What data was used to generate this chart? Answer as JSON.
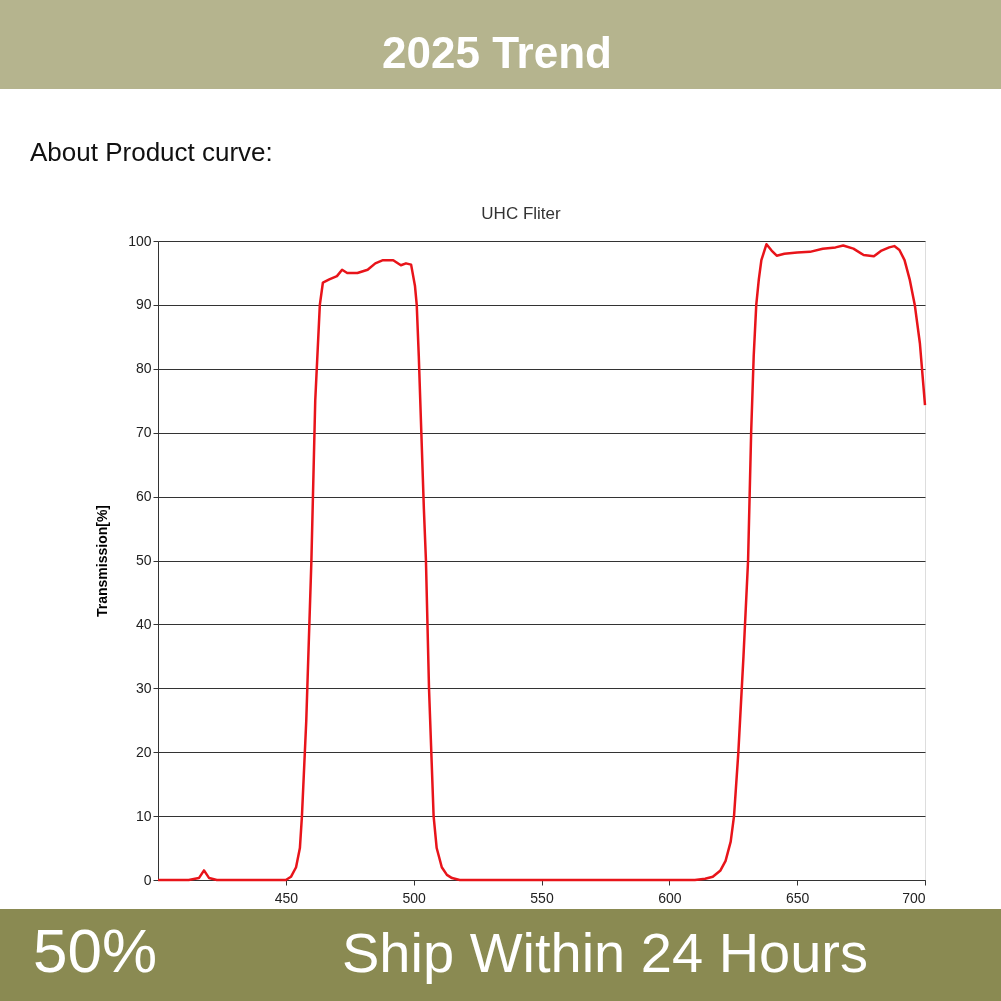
{
  "chart_data": {
    "type": "line",
    "title": "UHC Fliter",
    "ylabel": "Transmission[%]",
    "annotations": [
      "2025 Trend",
      "About Product curve:",
      "50%",
      "Ship Within 24 Hours"
    ],
    "xlim": [
      400,
      700
    ],
    "xticks": [
      450,
      500,
      550,
      600,
      650,
      700
    ],
    "ylim": [
      0,
      100
    ],
    "yticks": [
      0,
      10,
      20,
      30,
      40,
      50,
      60,
      70,
      80,
      90,
      100
    ],
    "grid": "y",
    "legend": false,
    "marker": "none",
    "line_style": "solid",
    "series": [
      {
        "color": "#e8141a",
        "x": [
          400,
          412,
          416,
          418,
          420,
          423,
          440,
          450,
          452,
          454,
          455.5,
          456.3,
          458,
          460,
          461.5,
          463.3,
          464.5,
          467,
          470,
          472,
          474,
          478,
          482,
          485,
          488,
          492,
          495,
          497,
          499,
          500.5,
          501.2,
          502,
          503,
          504,
          504.8,
          506,
          507.8,
          509,
          511,
          513,
          515,
          518,
          540,
          580,
          600,
          610,
          614,
          617,
          620,
          622,
          624,
          625.3,
          627,
          629,
          630.8,
          632,
          633,
          634,
          635,
          636,
          638,
          640,
          642,
          645,
          650,
          655,
          660,
          665,
          668,
          672,
          676,
          680,
          683,
          686,
          688,
          690,
          692,
          694,
          696,
          698,
          700
        ],
        "values": [
          0,
          0,
          0.3,
          1.5,
          0.3,
          0,
          0,
          0,
          0.5,
          2,
          5,
          10,
          25,
          50,
          75,
          90,
          93.5,
          94,
          94.5,
          95.5,
          95,
          95,
          95.5,
          96.5,
          97,
          97,
          96.2,
          96.5,
          96.3,
          93,
          90,
          82,
          70,
          58,
          50,
          30,
          10,
          5,
          2,
          0.8,
          0.3,
          0,
          0,
          0,
          0,
          0,
          0.2,
          0.5,
          1.5,
          3,
          6,
          10,
          20,
          35,
          50,
          70,
          82,
          90,
          94,
          97,
          99.5,
          98.5,
          97.7,
          98,
          98.2,
          98.3,
          98.8,
          99,
          99.3,
          98.8,
          97.8,
          97.6,
          98.5,
          99,
          99.2,
          98.6,
          97,
          94,
          90,
          84,
          74.3
        ]
      }
    ]
  }
}
